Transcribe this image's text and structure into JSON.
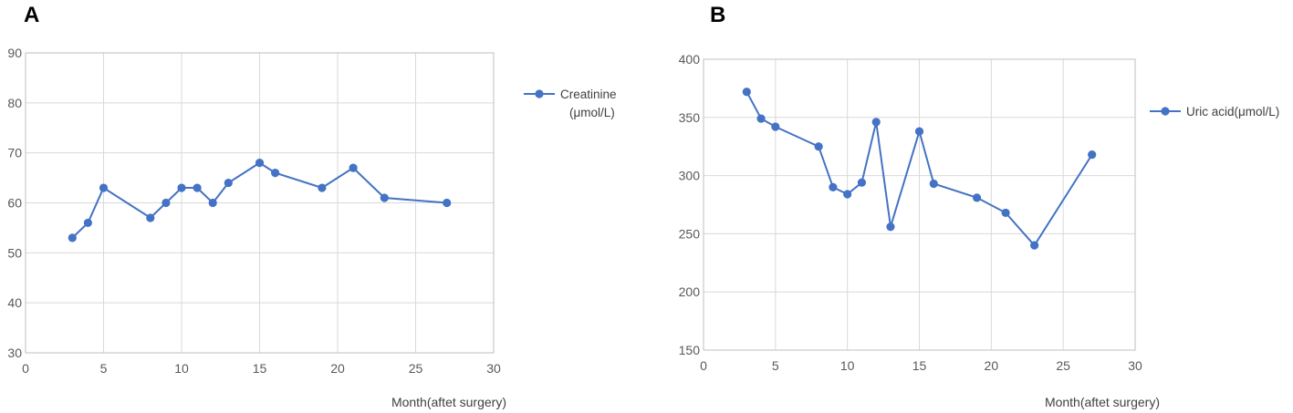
{
  "colors": {
    "series": "#4472C4",
    "marker": "#4472C4"
  },
  "chart_data": [
    {
      "panel": "A",
      "type": "line",
      "xlim": [
        0,
        30
      ],
      "ylim": [
        30,
        90
      ],
      "xticks": [
        0,
        5,
        10,
        15,
        20,
        25,
        30
      ],
      "yticks": [
        30,
        40,
        50,
        60,
        70,
        80,
        90
      ],
      "xlabel": "Month(aftet surgery)",
      "ylabel": "",
      "grid": true,
      "legend_position": "right",
      "series": [
        {
          "name": "Creatinine",
          "name_line2": "(μmol/L)",
          "x": [
            3,
            4,
            5,
            8,
            9,
            10,
            11,
            12,
            13,
            15,
            16,
            19,
            21,
            23,
            27
          ],
          "values": [
            53,
            56,
            63,
            57,
            60,
            63,
            63,
            60,
            64,
            68,
            66,
            63,
            67,
            61,
            60
          ]
        }
      ]
    },
    {
      "panel": "B",
      "type": "line",
      "xlim": [
        0,
        30
      ],
      "ylim": [
        150,
        400
      ],
      "xticks": [
        0,
        5,
        10,
        15,
        20,
        25,
        30
      ],
      "yticks": [
        150,
        200,
        250,
        300,
        350,
        400
      ],
      "xlabel": "Month(aftet surgery)",
      "ylabel": "",
      "grid": true,
      "legend_position": "right",
      "series": [
        {
          "name": "Uric acid(μmol/L)",
          "name_line2": "",
          "x": [
            3,
            4,
            5,
            8,
            9,
            10,
            11,
            12,
            13,
            15,
            16,
            19,
            21,
            23,
            27
          ],
          "values": [
            372,
            349,
            342,
            325,
            290,
            284,
            294,
            346,
            256,
            338,
            293,
            281,
            268,
            240,
            318
          ]
        }
      ]
    }
  ]
}
